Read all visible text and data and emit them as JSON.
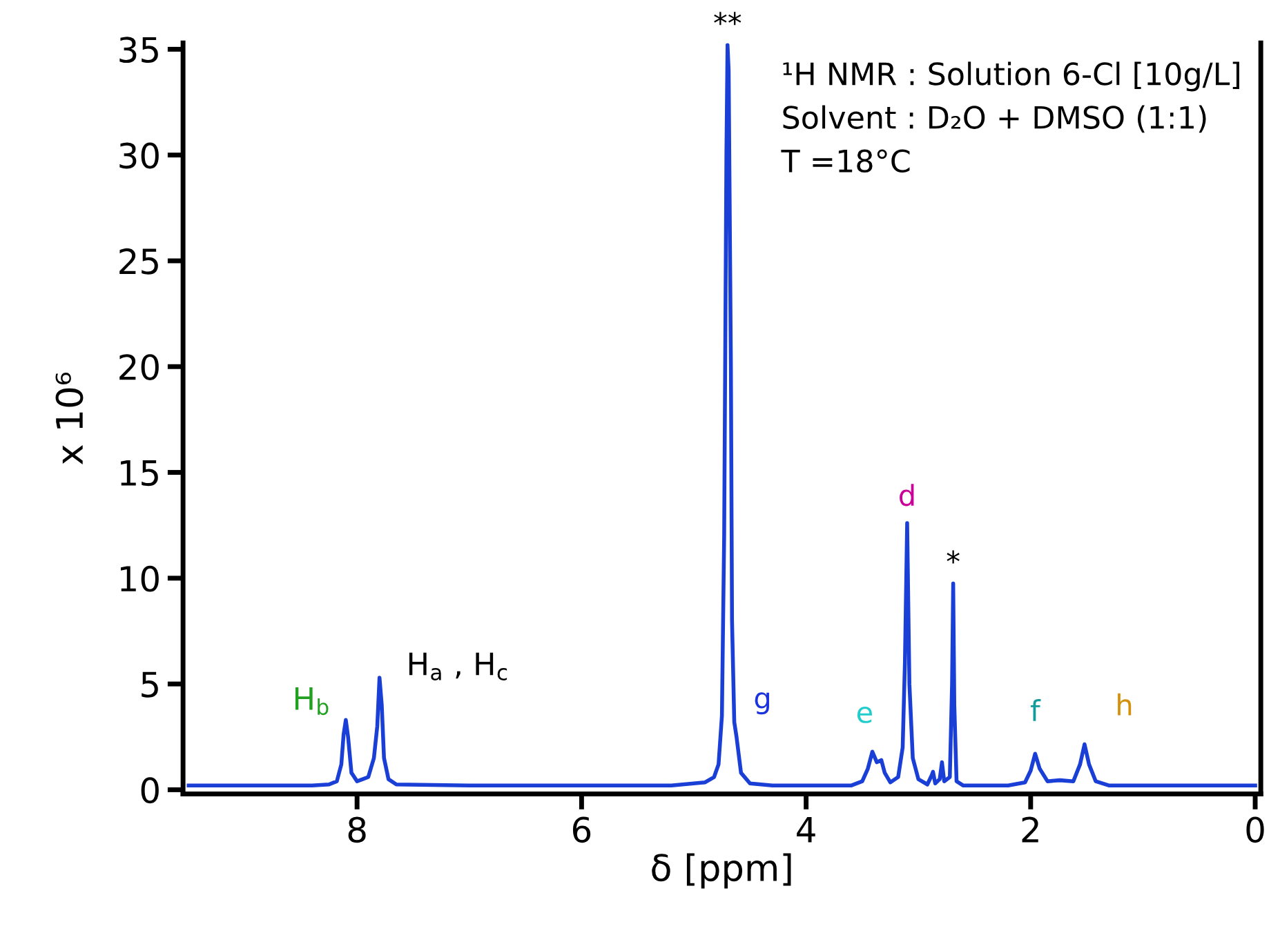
{
  "chart_data": {
    "type": "line",
    "xlabel": "δ [ppm]",
    "ylabel": "x 10⁶",
    "xlim": [
      9.55,
      -0.05
    ],
    "ylim": [
      -0.2,
      35.3
    ],
    "xticks": [
      8,
      6,
      4,
      2,
      0
    ],
    "yticks": [
      0,
      5,
      10,
      15,
      20,
      25,
      30,
      35
    ],
    "grid": false,
    "marker": "none",
    "line_style": "solid",
    "series": [
      {
        "color": "#1a3fd6",
        "x": [
          9.5,
          8.4,
          8.25,
          8.18,
          8.14,
          8.12,
          8.1,
          8.08,
          8.05,
          8.0,
          7.95,
          7.9,
          7.85,
          7.82,
          7.8,
          7.78,
          7.76,
          7.72,
          7.65,
          7.0,
          6.0,
          5.2,
          4.9,
          4.82,
          4.78,
          4.75,
          4.73,
          4.71,
          4.7,
          4.69,
          4.67,
          4.66,
          4.64,
          4.62,
          4.58,
          4.5,
          4.3,
          3.6,
          3.5,
          3.45,
          3.41,
          3.37,
          3.33,
          3.3,
          3.25,
          3.18,
          3.14,
          3.12,
          3.1,
          3.08,
          3.05,
          3.0,
          2.92,
          2.88,
          2.87,
          2.85,
          2.81,
          2.79,
          2.77,
          2.72,
          2.7,
          2.69,
          2.68,
          2.66,
          2.6,
          2.2,
          2.05,
          2.0,
          1.96,
          1.92,
          1.85,
          1.74,
          1.62,
          1.56,
          1.52,
          1.48,
          1.42,
          1.3,
          0.0
        ],
        "values": [
          0.2,
          0.2,
          0.25,
          0.4,
          1.2,
          2.6,
          3.3,
          2.5,
          0.8,
          0.4,
          0.5,
          0.6,
          1.5,
          3.0,
          5.3,
          4.0,
          1.5,
          0.5,
          0.25,
          0.2,
          0.2,
          0.2,
          0.35,
          0.6,
          1.2,
          3.5,
          12,
          30,
          35.2,
          34,
          20,
          8,
          3.2,
          2.5,
          0.8,
          0.3,
          0.2,
          0.2,
          0.4,
          1.0,
          1.8,
          1.3,
          1.4,
          0.8,
          0.35,
          0.6,
          2.0,
          6,
          12.6,
          5,
          1.5,
          0.5,
          0.25,
          0.7,
          0.85,
          0.3,
          0.5,
          1.3,
          0.4,
          0.6,
          5,
          9.75,
          4,
          0.4,
          0.2,
          0.2,
          0.35,
          0.9,
          1.7,
          1.0,
          0.4,
          0.45,
          0.4,
          1.2,
          2.15,
          1.2,
          0.4,
          0.2,
          0.2
        ]
      }
    ],
    "annotations": [
      "¹H NMR : Solution 6-Cl [10g/L]",
      "Solvent : D₂O + DMSO (1:1)",
      "T =18°C",
      {
        "text": "**",
        "x": 4.7,
        "y": 35.2
      },
      {
        "text": "H$_{b}$",
        "x": 8.1,
        "y": 3.3
      },
      {
        "text": "H$_{a}$ , H$_{c}$",
        "x": 7.8,
        "y": 5.3
      },
      {
        "text": "g",
        "x": 4.64,
        "y": 3.2
      },
      {
        "text": "e",
        "x": 3.41,
        "y": 1.8
      },
      {
        "text": "d",
        "x": 3.1,
        "y": 12.6
      },
      {
        "text": "*",
        "x": 2.69,
        "y": 9.75
      },
      {
        "text": "f",
        "x": 1.96,
        "y": 1.7
      },
      {
        "text": "h",
        "x": 1.52,
        "y": 2.15
      }
    ]
  }
}
